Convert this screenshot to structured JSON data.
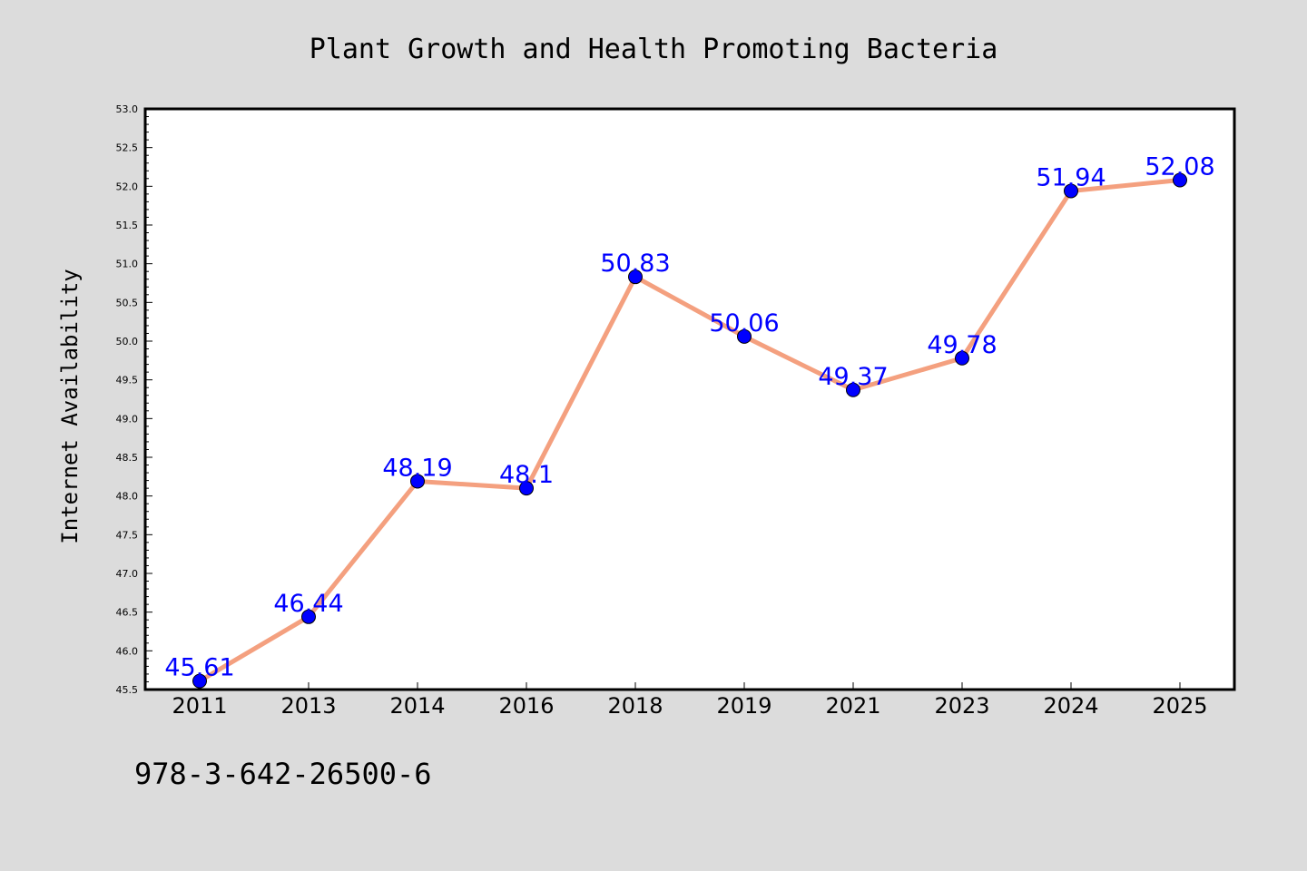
{
  "chart_data": {
    "type": "line",
    "title": "Plant Growth and Health Promoting Bacteria",
    "xlabel": "",
    "ylabel": "Internet Availability",
    "categories": [
      "2011",
      "2013",
      "2014",
      "2016",
      "2018",
      "2019",
      "2021",
      "2023",
      "2024",
      "2025"
    ],
    "series": [
      {
        "values": [
          45.61,
          46.44,
          48.19,
          48.1,
          50.83,
          50.06,
          49.37,
          49.78,
          51.94,
          52.08
        ],
        "labels": [
          "45.61",
          "46.44",
          "48.19",
          "48.1",
          "50.83",
          "50.06",
          "49.37",
          "49.78",
          "51.94",
          "52.08"
        ]
      }
    ],
    "ylim": [
      45.5,
      53.0
    ],
    "yticks": [
      "45.5",
      "46.0",
      "46.5",
      "47.0",
      "47.5",
      "48.0",
      "48.5",
      "49.0",
      "49.5",
      "50.0",
      "50.5",
      "51.0",
      "51.5",
      "52.0",
      "52.5",
      "53.0"
    ],
    "grid": false,
    "legend": "none",
    "colors": {
      "line": "#f4a07f",
      "marker": "#0000ff",
      "labels": "#0000ff",
      "background": "#dcdcdc",
      "plot_background": "#ffffff"
    }
  },
  "footer": {
    "isbn": "978-3-642-26500-6"
  }
}
